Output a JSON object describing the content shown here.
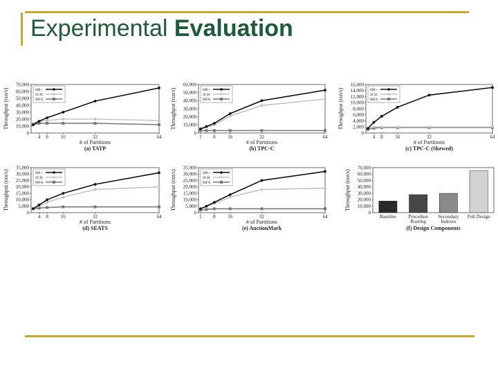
{
  "slide": {
    "title_part1": "Experimental ",
    "title_part2": "Evaluation"
  },
  "colors": {
    "accent_line": "#c8a62a",
    "title": "#1e5b3a",
    "HR+": "#111111",
    "SCH": "#c4c4c4",
    "MFA": "#777777"
  },
  "chart_data": [
    {
      "type": "line",
      "caption": "(a) TATP",
      "xlabel": "# of Partitions",
      "ylabel": "Throughput (txn/s)",
      "xticks": [
        4,
        8,
        16,
        32,
        64
      ],
      "xlim": [
        0,
        64
      ],
      "yticks": [
        "0",
        "10,000",
        "20,000",
        "30,000",
        "40,000",
        "50,000",
        "60,000",
        "70,000"
      ],
      "ylim": [
        0,
        70000
      ],
      "legend_position": "top-left",
      "x": [
        1,
        4,
        8,
        16,
        32,
        64
      ],
      "series": [
        {
          "name": "HR+",
          "values": [
            12000,
            17000,
            22000,
            30000,
            46000,
            65000
          ]
        },
        {
          "name": "SCH",
          "values": [
            14000,
            17000,
            18000,
            20000,
            20000,
            18000
          ]
        },
        {
          "name": "MFA",
          "values": [
            12000,
            14000,
            14000,
            14000,
            14000,
            12000
          ]
        }
      ]
    },
    {
      "type": "line",
      "caption": "(b) TPC-C",
      "xlabel": "# of Partitions",
      "ylabel": "Throughput (txn/s)",
      "xticks": [
        1,
        8,
        16,
        32,
        64
      ],
      "xlim": [
        0,
        64
      ],
      "yticks": [
        "0",
        "10,000",
        "20,000",
        "30,000",
        "40,000",
        "50,000",
        "60,000"
      ],
      "ylim": [
        0,
        60000
      ],
      "legend_position": "top-left",
      "x": [
        1,
        4,
        8,
        16,
        32,
        64
      ],
      "series": [
        {
          "name": "HR+",
          "values": [
            5000,
            8000,
            12000,
            24000,
            40000,
            53000
          ]
        },
        {
          "name": "SCH",
          "values": [
            5000,
            7000,
            10000,
            21000,
            34000,
            42000
          ]
        },
        {
          "name": "MFA",
          "values": [
            3000,
            3000,
            3000,
            3000,
            3000,
            3000
          ]
        }
      ]
    },
    {
      "type": "line",
      "caption": "(c) TPC-C (Skewed)",
      "xlabel": "# of Partitions",
      "ylabel": "Throughput (txn/s)",
      "xticks": [
        4,
        8,
        16,
        32,
        64
      ],
      "xlim": [
        0,
        64
      ],
      "yticks": [
        "0",
        "2,000",
        "4,000",
        "6,000",
        "8,000",
        "10,000",
        "12,000",
        "14,000",
        "16,000"
      ],
      "ylim": [
        0,
        16000
      ],
      "legend_position": "top-left",
      "x": [
        1,
        4,
        8,
        16,
        32,
        64
      ],
      "series": [
        {
          "name": "HR+",
          "values": [
            1500,
            3500,
            5500,
            8500,
            12500,
            15000
          ]
        },
        {
          "name": "SCH",
          "values": [
            1500,
            2000,
            2000,
            2000,
            2000,
            2000
          ]
        },
        {
          "name": "MFA",
          "values": [
            1200,
            1600,
            1800,
            1800,
            1800,
            1800
          ]
        }
      ]
    },
    {
      "type": "line",
      "caption": "(d) SEATS",
      "xlabel": "# of Partitions",
      "ylabel": "Throughput (txn/s)",
      "xticks": [
        4,
        8,
        16,
        32,
        64
      ],
      "xlim": [
        0,
        64
      ],
      "yticks": [
        "0",
        "5,000",
        "10,000",
        "15,000",
        "20,000",
        "25,000",
        "30,000",
        "35,000"
      ],
      "ylim": [
        0,
        35000
      ],
      "legend_position": "top-left",
      "x": [
        1,
        4,
        8,
        16,
        32,
        64
      ],
      "series": [
        {
          "name": "HR+",
          "values": [
            3000,
            6000,
            10000,
            15000,
            22000,
            31000
          ]
        },
        {
          "name": "SCH",
          "values": [
            3000,
            5000,
            8000,
            12000,
            18000,
            20000
          ]
        },
        {
          "name": "MFA",
          "values": [
            3000,
            3500,
            4000,
            4500,
            4500,
            4500
          ]
        }
      ]
    },
    {
      "type": "line",
      "caption": "(e) AuctionMark",
      "xlabel": "# of Partitions",
      "ylabel": "Throughput (txn/s)",
      "xticks": [
        1,
        8,
        16,
        32,
        64
      ],
      "xlim": [
        0,
        64
      ],
      "yticks": [
        "0",
        "5,000",
        "10,000",
        "15,000",
        "20,000",
        "25,000",
        "30,000",
        "35,000"
      ],
      "ylim": [
        0,
        35000
      ],
      "legend_position": "top-left",
      "x": [
        1,
        4,
        8,
        16,
        32,
        64
      ],
      "series": [
        {
          "name": "HR+",
          "values": [
            3000,
            5000,
            8000,
            14000,
            25000,
            32000
          ]
        },
        {
          "name": "SCH",
          "values": [
            3000,
            5000,
            7000,
            12000,
            18000,
            19000
          ]
        },
        {
          "name": "MFA",
          "values": [
            2000,
            2500,
            3000,
            3000,
            3000,
            3000
          ]
        }
      ]
    },
    {
      "type": "bar",
      "caption": "(f) Design Components",
      "ylabel": "Throughput (txn/s)",
      "categories": [
        "Baseline",
        "Procedure Routing",
        "Secondary Indexes",
        "Full Design"
      ],
      "values": [
        18000,
        28000,
        30000,
        65000
      ],
      "colors": [
        "#2a2a2a",
        "#474747",
        "#8a8a8a",
        "#d2d2d2"
      ],
      "yticks": [
        "0",
        "10,000",
        "20,000",
        "30,000",
        "40,000",
        "50,000",
        "60,000",
        "70,000"
      ],
      "ylim": [
        0,
        70000
      ]
    }
  ]
}
